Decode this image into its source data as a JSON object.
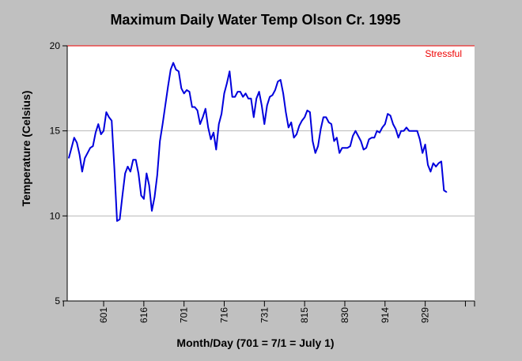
{
  "chart_data": {
    "type": "line",
    "title": "Maximum Daily Water Temp Olson Cr. 1995",
    "xlabel": "Month/Day (701 = 7/1 = July 1)",
    "ylabel": "Temperature (Celsius)",
    "ylim": [
      5,
      20
    ],
    "yticks": [
      5,
      10,
      15,
      20
    ],
    "xticks": [
      "601",
      "616",
      "701",
      "716",
      "731",
      "815",
      "830",
      "914",
      "929"
    ],
    "grid": "horizontal",
    "line_color": "#0000dd",
    "threshold": {
      "label": "Stressful",
      "value": 20,
      "color": "#ee0000"
    },
    "series": [
      {
        "values": [
          13.4,
          14.0,
          14.6,
          14.3,
          13.6,
          12.6,
          13.4,
          13.7,
          14.0,
          14.1,
          14.9,
          15.4,
          14.8,
          15.0,
          16.1,
          15.8,
          15.6,
          12.8,
          9.7,
          9.8,
          11.2,
          12.5,
          12.9,
          12.6,
          13.3,
          13.3,
          12.5,
          11.2,
          11.0,
          12.5,
          11.8,
          10.3,
          11.1,
          12.4,
          14.4,
          15.4,
          16.5,
          17.6,
          18.6,
          19.0,
          18.6,
          18.5,
          17.5,
          17.2,
          17.4,
          17.3,
          16.4,
          16.4,
          16.2,
          15.4,
          15.8,
          16.3,
          15.2,
          14.5,
          14.9,
          13.9,
          15.4,
          16.0,
          17.2,
          17.8,
          18.5,
          17.0,
          17.0,
          17.3,
          17.3,
          17.0,
          17.2,
          16.9,
          16.9,
          15.8,
          16.9,
          17.3,
          16.5,
          15.4,
          16.5,
          17.0,
          17.1,
          17.4,
          17.9,
          18.0,
          17.2,
          16.1,
          15.2,
          15.5,
          14.6,
          14.8,
          15.3,
          15.6,
          15.8,
          16.2,
          16.1,
          14.4,
          13.7,
          14.1,
          15.1,
          15.8,
          15.8,
          15.5,
          15.4,
          14.4,
          14.6,
          13.7,
          14.0,
          14.0,
          14.0,
          14.1,
          14.7,
          15.0,
          14.7,
          14.4,
          13.9,
          14.0,
          14.5,
          14.6,
          14.6,
          15.0,
          14.9,
          15.2,
          15.4,
          16.0,
          15.9,
          15.4,
          15.1,
          14.6,
          15.0,
          15.0,
          15.2,
          15.0,
          15.0,
          15.0,
          15.0,
          14.5,
          13.7,
          14.2,
          13.0,
          12.6,
          13.1,
          12.9,
          13.1,
          13.2,
          11.5,
          11.4
        ]
      }
    ]
  }
}
